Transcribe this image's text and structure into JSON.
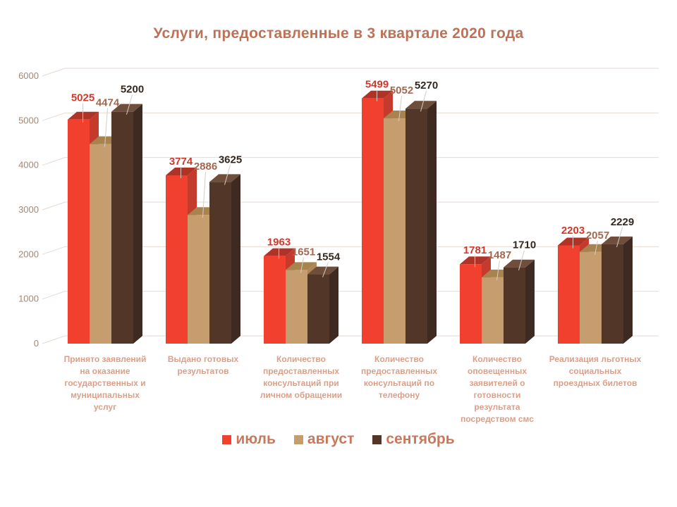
{
  "title": "Услуги, предоставленные в 3 квартале 2020 года",
  "chart_data": {
    "type": "bar",
    "style": "3d-column",
    "title": "Услуги, предоставленные в 3 квартале 2020 года",
    "categories": [
      "Принято заявлений на оказание государственных и муниципальных услуг",
      "Выдано готовых результатов",
      "Количество предоставленных консультаций при личном обращении",
      "Количество предоставленных консультаций по телефону",
      "Количество оповещенных заявителей о готовности результата посредством смс",
      "Реализация льготных социальных проездных билетов"
    ],
    "series": [
      {
        "name": "июль",
        "values": [
          5025,
          3774,
          1963,
          5499,
          1781,
          2203
        ],
        "front": "#F2402F",
        "top": "#AF3327",
        "side": "#C43A2C",
        "label_color": "#D2382A"
      },
      {
        "name": "август",
        "values": [
          4474,
          2886,
          1651,
          5052,
          1487,
          2057
        ],
        "front": "#C59D6F",
        "top": "#A8824F",
        "side": "#AD8756",
        "label_color": "#A4684F"
      },
      {
        "name": "сентябрь",
        "values": [
          5200,
          3625,
          1554,
          5270,
          1710,
          2229
        ],
        "front": "#523729",
        "top": "#6F4F3B",
        "side": "#3E2A20",
        "label_color": "#332820"
      }
    ],
    "ylim": [
      0,
      6000
    ],
    "yticks": [
      0,
      1000,
      2000,
      3000,
      4000,
      5000,
      6000
    ],
    "grid": true,
    "legend_position": "bottom",
    "data_labels": true
  },
  "palette": {
    "background": "#FFFFFF",
    "title_color": "#BD7258",
    "axis_tick_color": "#A58874",
    "category_label_color": "#DB9F88",
    "legend_text_color": "#C9795B",
    "gridline_color": "#E6DAD2",
    "leader_line_color": "#D8CCC4"
  }
}
